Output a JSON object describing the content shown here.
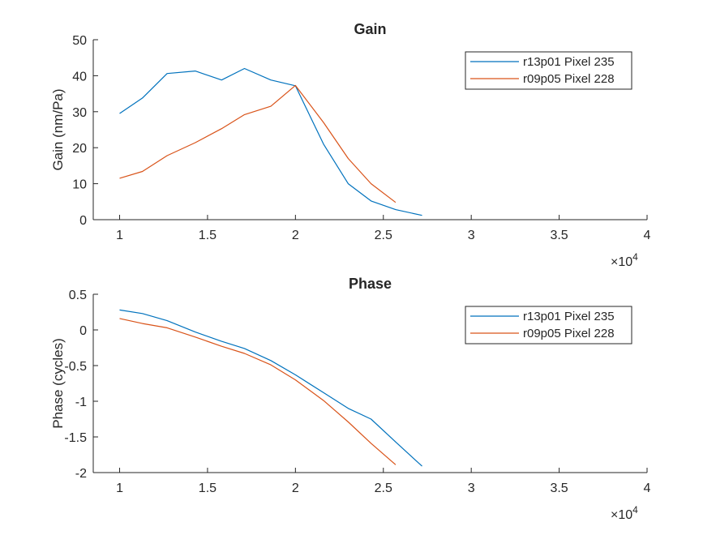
{
  "chart_data": [
    {
      "type": "line",
      "title": "Gain",
      "xlabel": "",
      "ylabel": "Gain (nm/Pa)",
      "xlim": [
        8500,
        40000
      ],
      "ylim": [
        0,
        50
      ],
      "xticks": [
        10000,
        15000,
        20000,
        25000,
        30000,
        35000,
        40000
      ],
      "xtick_labels": [
        "1",
        "1.5",
        "2",
        "2.5",
        "3",
        "3.5",
        "4"
      ],
      "yticks": [
        0,
        10,
        20,
        30,
        40,
        50
      ],
      "ytick_labels": [
        "0",
        "10",
        "20",
        "30",
        "40",
        "50"
      ],
      "x_exponent_label": "×10",
      "x_exponent_power": "4",
      "grid": false,
      "legend_position": "top-right",
      "series": [
        {
          "name": "r13p01 Pixel 235",
          "color": "#0072BD",
          "x": [
            10000,
            11300,
            12700,
            14300,
            15800,
            17100,
            18600,
            20000,
            21600,
            23000,
            24300,
            25700,
            27200
          ],
          "y": [
            29.5,
            33.8,
            40.6,
            41.3,
            38.8,
            42.0,
            38.8,
            37.2,
            21.0,
            10.0,
            5.2,
            2.8,
            1.2
          ]
        },
        {
          "name": "r09p05 Pixel 228",
          "color": "#D95319",
          "x": [
            10000,
            11300,
            12700,
            14300,
            15800,
            17100,
            18600,
            20000,
            21600,
            23000,
            24300,
            25700
          ],
          "y": [
            11.5,
            13.4,
            17.8,
            21.4,
            25.3,
            29.2,
            31.5,
            37.3,
            27.0,
            17.0,
            10.0,
            4.8
          ]
        }
      ]
    },
    {
      "type": "line",
      "title": "Phase",
      "xlabel": "",
      "ylabel": "Phase (cycles)",
      "xlim": [
        8500,
        40000
      ],
      "ylim": [
        -2,
        0.5
      ],
      "xticks": [
        10000,
        15000,
        20000,
        25000,
        30000,
        35000,
        40000
      ],
      "xtick_labels": [
        "1",
        "1.5",
        "2",
        "2.5",
        "3",
        "3.5",
        "4"
      ],
      "yticks": [
        -2,
        -1.5,
        -1,
        -0.5,
        0,
        0.5
      ],
      "ytick_labels": [
        "-2",
        "-1.5",
        "-1",
        "-0.5",
        "0",
        "0.5"
      ],
      "x_exponent_label": "×10",
      "x_exponent_power": "4",
      "grid": false,
      "legend_position": "top-right",
      "series": [
        {
          "name": "r13p01 Pixel 235",
          "color": "#0072BD",
          "x": [
            10000,
            11300,
            12700,
            14300,
            15800,
            17100,
            18600,
            20000,
            21600,
            23000,
            24300,
            25700,
            27200
          ],
          "y": [
            0.28,
            0.23,
            0.13,
            -0.03,
            -0.16,
            -0.26,
            -0.43,
            -0.63,
            -0.88,
            -1.1,
            -1.25,
            -1.57,
            -1.91
          ]
        },
        {
          "name": "r09p05 Pixel 228",
          "color": "#D95319",
          "x": [
            10000,
            11300,
            12700,
            14300,
            15800,
            17100,
            18600,
            20000,
            21600,
            23000,
            24300,
            25700
          ],
          "y": [
            0.16,
            0.09,
            0.03,
            -0.1,
            -0.23,
            -0.33,
            -0.49,
            -0.7,
            -0.99,
            -1.29,
            -1.59,
            -1.89
          ]
        }
      ]
    }
  ]
}
